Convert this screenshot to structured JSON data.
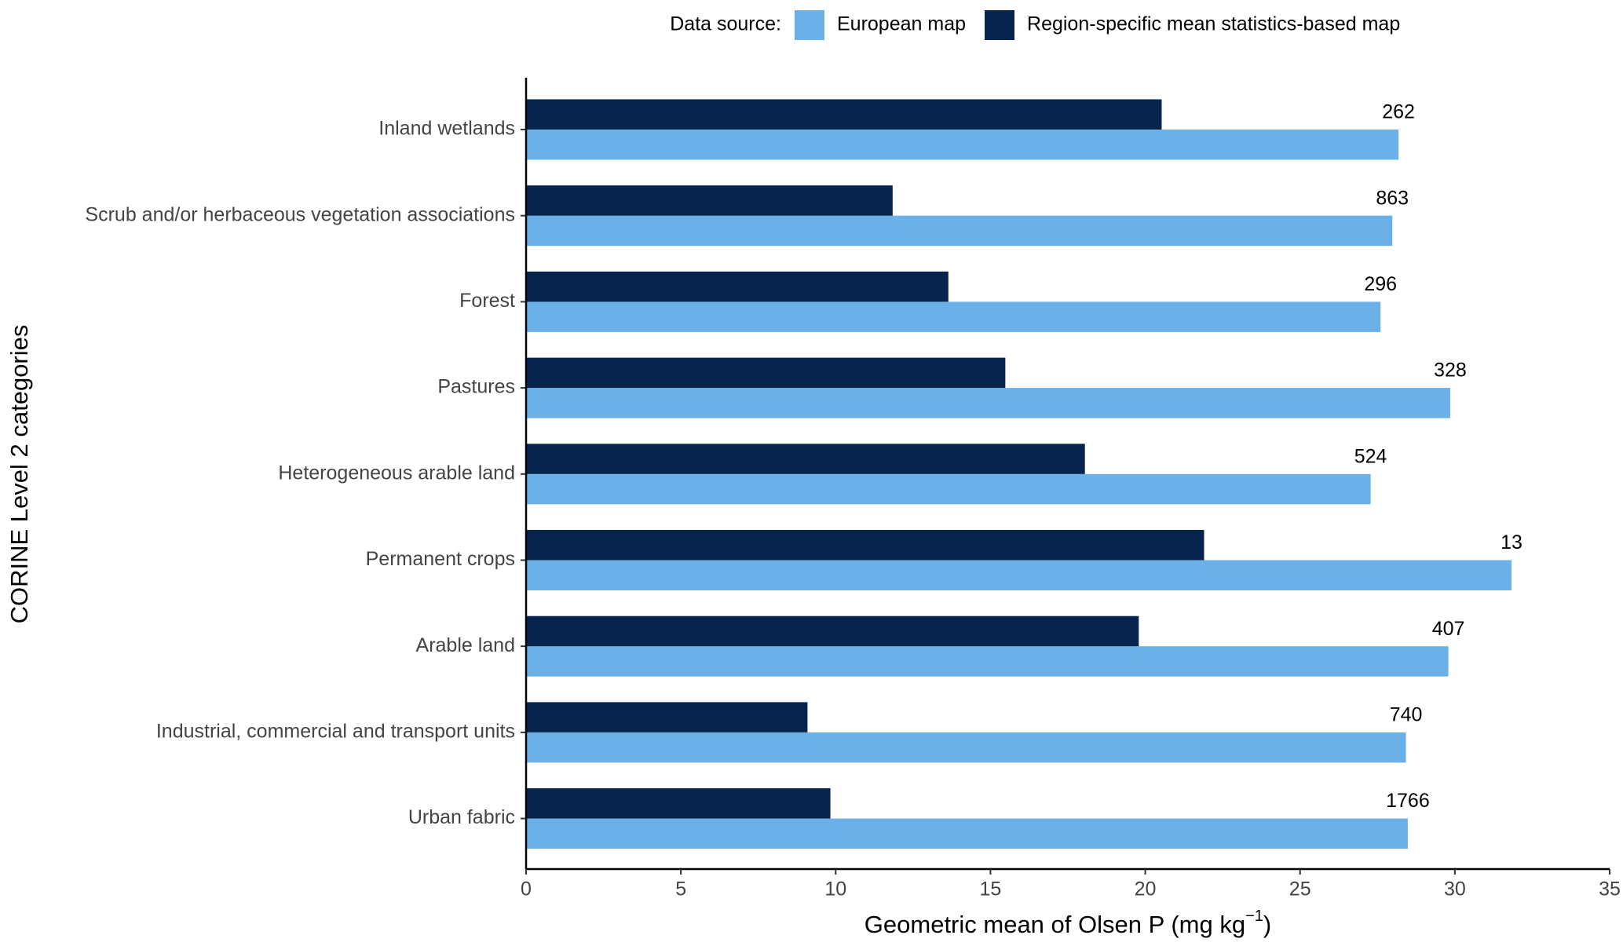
{
  "chart_data": {
    "type": "barh",
    "legend_title": "Data source:",
    "categories": [
      "Inland wetlands",
      "Scrub and/or herbaceous vegetation associations",
      "Forest",
      "Pastures",
      "Heterogeneous arable land",
      "Permanent crops",
      "Arable land",
      "Industrial, commercial and transport units",
      "Urban fabric"
    ],
    "series": [
      {
        "name": "European map",
        "color": "#6cb0e8",
        "values": [
          28.18,
          27.98,
          27.6,
          29.85,
          27.28,
          31.83,
          29.79,
          28.42,
          28.48
        ]
      },
      {
        "name": "Region-specific mean statistics-based map",
        "color": "#06244d",
        "values": [
          20.53,
          11.84,
          13.64,
          15.48,
          18.05,
          21.9,
          19.79,
          9.09,
          9.83
        ]
      }
    ],
    "annotations": [
      262,
      863,
      296,
      328,
      524,
      13,
      407,
      740,
      1766
    ],
    "xlim": [
      0,
      35
    ],
    "xticks": [
      0,
      5,
      10,
      15,
      20,
      25,
      30,
      35
    ],
    "xlabel": "Geometric mean of Olsen P (mg kg",
    "xlabel_sup": "−1",
    "xlabel_end": ")",
    "ylabel": "CORINE Level 2 categories",
    "legend_position": "top"
  }
}
